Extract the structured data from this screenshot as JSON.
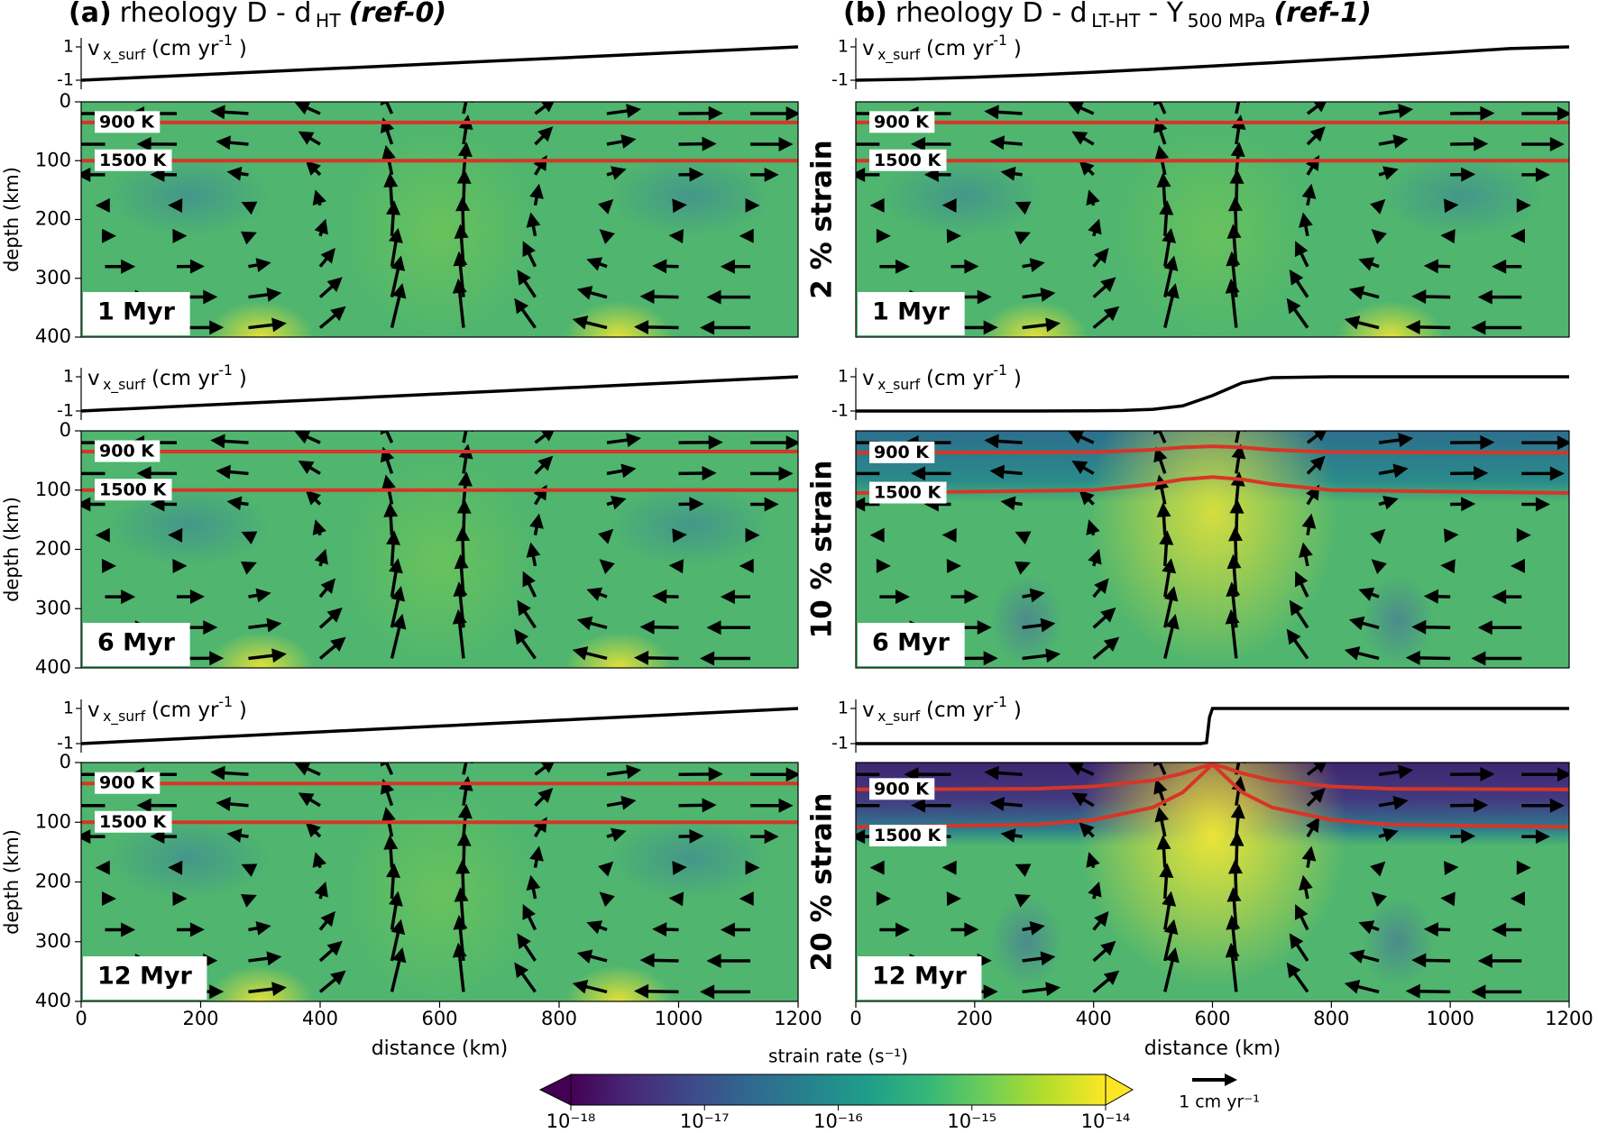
{
  "column_titles": [
    {
      "parts": [
        {
          "text": "(a)",
          "style": "bold"
        },
        {
          "text": "rheology D - d",
          "style": "normal"
        },
        {
          "text": "HT",
          "style": "sub"
        },
        {
          "text": "(ref-0)",
          "style": "bold-italic"
        }
      ]
    },
    {
      "parts": [
        {
          "text": "(b)",
          "style": "bold"
        },
        {
          "text": "rheology D - d",
          "style": "normal"
        },
        {
          "text": "LT-HT",
          "style": "sub"
        },
        {
          "text": "- Y",
          "style": "normal"
        },
        {
          "text": "500 MPa",
          "style": "sub"
        },
        {
          "text": "(ref-1)",
          "style": "bold-italic"
        }
      ]
    }
  ],
  "vector_key": {
    "value": 1,
    "label": "1 cm yr⁻¹"
  },
  "chart_data": [
    {
      "type": "field",
      "time_label": "1 Myr",
      "ylabel": "depth (km)",
      "xlim": [
        0,
        1200
      ],
      "ylim": [
        400,
        0
      ],
      "yticks": [
        0,
        100,
        200,
        300,
        400
      ],
      "surface_velocity": {
        "label_parts": [
          {
            "text": "v",
            "style": "normal"
          },
          {
            "text": "x_surf",
            "style": "sub"
          },
          {
            "text": "(cm yr",
            "style": "normal"
          },
          {
            "text": "-1",
            "style": "sup"
          },
          {
            "text": ")",
            "style": "normal"
          }
        ],
        "ylim": [
          -1,
          1
        ],
        "yticks": [
          -1,
          1
        ],
        "color": "#000000",
        "x": [
          0,
          100,
          200,
          300,
          400,
          500,
          600,
          700,
          800,
          900,
          1000,
          1100,
          1200
        ],
        "values": [
          -1,
          -0.833,
          -0.667,
          -0.5,
          -0.333,
          -0.167,
          0,
          0.167,
          0.333,
          0.5,
          0.667,
          0.833,
          1
        ]
      },
      "isotherms": [
        {
          "label": "900 K",
          "color": "#d73527",
          "x": [
            0,
            1200
          ],
          "depth": [
            35,
            35
          ]
        },
        {
          "label": "1500 K",
          "color": "#d73527",
          "x": [
            0,
            1200
          ],
          "depth": [
            100,
            100
          ]
        }
      ]
    },
    {
      "type": "field",
      "time_label": "1 Myr",
      "strain_label": "2 % strain",
      "xlim": [
        0,
        1200
      ],
      "ylim": [
        400,
        0
      ],
      "surface_velocity": {
        "label_parts": [
          {
            "text": "v",
            "style": "normal"
          },
          {
            "text": "x_surf",
            "style": "sub"
          },
          {
            "text": "(cm yr",
            "style": "normal"
          },
          {
            "text": "-1",
            "style": "sup"
          },
          {
            "text": ")",
            "style": "normal"
          }
        ],
        "ylim": [
          -1,
          1
        ],
        "yticks": [
          -1,
          1
        ],
        "color": "#000000",
        "x": [
          0,
          100,
          200,
          300,
          400,
          500,
          600,
          700,
          800,
          900,
          1000,
          1100,
          1200
        ],
        "values": [
          -1,
          -0.93,
          -0.82,
          -0.68,
          -0.52,
          -0.34,
          -0.15,
          0.05,
          0.25,
          0.45,
          0.67,
          0.9,
          1
        ]
      },
      "isotherms": [
        {
          "label": "900 K",
          "color": "#d73527",
          "x": [
            0,
            1200
          ],
          "depth": [
            35,
            35
          ]
        },
        {
          "label": "1500 K",
          "color": "#d73527",
          "x": [
            0,
            1200
          ],
          "depth": [
            100,
            100
          ]
        }
      ]
    },
    {
      "type": "field",
      "time_label": "6 Myr",
      "ylabel": "depth (km)",
      "xlim": [
        0,
        1200
      ],
      "ylim": [
        400,
        0
      ],
      "yticks": [
        0,
        100,
        200,
        300,
        400
      ],
      "surface_velocity": {
        "label_parts": [
          {
            "text": "v",
            "style": "normal"
          },
          {
            "text": "x_surf",
            "style": "sub"
          },
          {
            "text": "(cm yr",
            "style": "normal"
          },
          {
            "text": "-1",
            "style": "sup"
          },
          {
            "text": ")",
            "style": "normal"
          }
        ],
        "ylim": [
          -1,
          1
        ],
        "yticks": [
          -1,
          1
        ],
        "color": "#000000",
        "x": [
          0,
          100,
          200,
          300,
          400,
          500,
          600,
          700,
          800,
          900,
          1000,
          1100,
          1200
        ],
        "values": [
          -1,
          -0.833,
          -0.667,
          -0.5,
          -0.333,
          -0.167,
          0,
          0.167,
          0.333,
          0.5,
          0.667,
          0.833,
          1
        ]
      },
      "isotherms": [
        {
          "label": "900 K",
          "color": "#d73527",
          "x": [
            0,
            1200
          ],
          "depth": [
            35,
            35
          ]
        },
        {
          "label": "1500 K",
          "color": "#d73527",
          "x": [
            0,
            1200
          ],
          "depth": [
            100,
            100
          ]
        }
      ]
    },
    {
      "type": "field",
      "time_label": "6 Myr",
      "strain_label": "10 % strain",
      "xlim": [
        0,
        1200
      ],
      "ylim": [
        400,
        0
      ],
      "surface_velocity": {
        "label_parts": [
          {
            "text": "v",
            "style": "normal"
          },
          {
            "text": "x_surf",
            "style": "sub"
          },
          {
            "text": "(cm yr",
            "style": "normal"
          },
          {
            "text": "-1",
            "style": "sup"
          },
          {
            "text": ")",
            "style": "normal"
          }
        ],
        "ylim": [
          -1,
          1
        ],
        "yticks": [
          -1,
          1
        ],
        "color": "#000000",
        "x": [
          0,
          100,
          200,
          300,
          400,
          450,
          500,
          550,
          600,
          650,
          700,
          800,
          900,
          1000,
          1100,
          1200
        ],
        "values": [
          -1,
          -1,
          -1,
          -1,
          -0.99,
          -0.97,
          -0.9,
          -0.7,
          -0.1,
          0.65,
          0.95,
          1,
          1,
          1,
          1,
          1
        ]
      },
      "isotherms": [
        {
          "label": "900 K",
          "color": "#d73527",
          "x": [
            0,
            400,
            500,
            550,
            600,
            650,
            700,
            800,
            1200
          ],
          "depth": [
            37,
            36,
            32,
            28,
            26,
            28,
            32,
            36,
            37
          ]
        },
        {
          "label": "1500 K",
          "color": "#d73527",
          "x": [
            0,
            400,
            500,
            550,
            600,
            650,
            700,
            800,
            1200
          ],
          "depth": [
            105,
            100,
            90,
            82,
            78,
            82,
            90,
            100,
            105
          ]
        }
      ]
    },
    {
      "type": "field",
      "time_label": "12 Myr",
      "ylabel": "depth (km)",
      "xlabel": "distance (km)",
      "xlim": [
        0,
        1200
      ],
      "xticks": [
        0,
        200,
        400,
        600,
        800,
        1000,
        1200
      ],
      "ylim": [
        400,
        0
      ],
      "yticks": [
        0,
        100,
        200,
        300,
        400
      ],
      "surface_velocity": {
        "label_parts": [
          {
            "text": "v",
            "style": "normal"
          },
          {
            "text": "x_surf",
            "style": "sub"
          },
          {
            "text": "(cm yr",
            "style": "normal"
          },
          {
            "text": "-1",
            "style": "sup"
          },
          {
            "text": ")",
            "style": "normal"
          }
        ],
        "ylim": [
          -1,
          1
        ],
        "yticks": [
          -1,
          1
        ],
        "color": "#000000",
        "x": [
          0,
          100,
          200,
          300,
          400,
          500,
          600,
          700,
          800,
          900,
          1000,
          1100,
          1200
        ],
        "values": [
          -1,
          -0.833,
          -0.667,
          -0.5,
          -0.333,
          -0.167,
          0,
          0.167,
          0.333,
          0.5,
          0.667,
          0.833,
          1
        ]
      },
      "isotherms": [
        {
          "label": "900 K",
          "color": "#d73527",
          "x": [
            0,
            1200
          ],
          "depth": [
            35,
            35
          ]
        },
        {
          "label": "1500 K",
          "color": "#d73527",
          "x": [
            0,
            1200
          ],
          "depth": [
            100,
            100
          ]
        }
      ]
    },
    {
      "type": "field",
      "time_label": "12 Myr",
      "strain_label": "20 % strain",
      "xlabel": "distance (km)",
      "xlim": [
        0,
        1200
      ],
      "xticks": [
        0,
        200,
        400,
        600,
        800,
        1000,
        1200
      ],
      "ylim": [
        400,
        0
      ],
      "surface_velocity": {
        "label_parts": [
          {
            "text": "v",
            "style": "normal"
          },
          {
            "text": "x_surf",
            "style": "sub"
          },
          {
            "text": "(cm yr",
            "style": "normal"
          },
          {
            "text": "-1",
            "style": "sup"
          },
          {
            "text": ")",
            "style": "normal"
          }
        ],
        "ylim": [
          -1,
          1
        ],
        "yticks": [
          -1,
          1
        ],
        "color": "#000000",
        "x": [
          0,
          580,
          590,
          595,
          600,
          610,
          1200
        ],
        "values": [
          -1,
          -1,
          -0.95,
          0.5,
          1,
          1,
          1
        ]
      },
      "isotherms": [
        {
          "label": "900 K",
          "color": "#d73527",
          "x": [
            0,
            300,
            400,
            500,
            550,
            580,
            600,
            620,
            650,
            700,
            800,
            900,
            1200
          ],
          "depth": [
            45,
            44,
            40,
            30,
            18,
            8,
            3,
            8,
            18,
            30,
            40,
            44,
            45
          ]
        },
        {
          "label": "1500 K",
          "color": "#d73527",
          "x": [
            0,
            300,
            400,
            500,
            550,
            580,
            600,
            620,
            650,
            700,
            800,
            900,
            1200
          ],
          "depth": [
            108,
            104,
            96,
            75,
            50,
            22,
            3,
            22,
            50,
            75,
            96,
            104,
            108
          ]
        }
      ]
    },
    {
      "type": "colorbar",
      "label": "strain rate (s⁻¹)",
      "colormap": "viridis",
      "log": true,
      "extend": "both",
      "xlim": [
        1e-18,
        1e-14
      ],
      "xticks": [
        {
          "value": 1e-18,
          "label": "10⁻¹⁸"
        },
        {
          "value": 1e-17,
          "label": "10⁻¹⁷"
        },
        {
          "value": 1e-16,
          "label": "10⁻¹⁶"
        },
        {
          "value": 1e-15,
          "label": "10⁻¹⁵"
        },
        {
          "value": 1e-14,
          "label": "10⁻¹⁴"
        }
      ]
    }
  ]
}
